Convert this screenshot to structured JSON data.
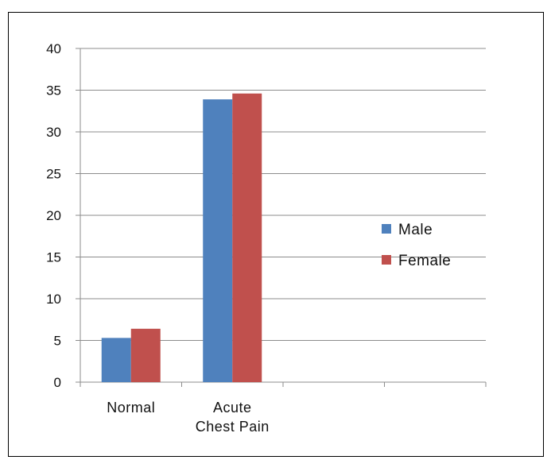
{
  "chart_data": {
    "type": "bar",
    "categories": [
      [
        "Normal"
      ],
      [
        "Acute",
        "Chest Pain"
      ],
      [
        ""
      ],
      [
        ""
      ]
    ],
    "series": [
      {
        "name": "Male",
        "values": [
          5.3,
          33.9,
          null,
          null
        ],
        "color": "#4F81BD"
      },
      {
        "name": "Female",
        "values": [
          6.4,
          34.6,
          null,
          null
        ],
        "color": "#C0504D"
      }
    ],
    "ylim": [
      0,
      40
    ],
    "yticks": [
      "0",
      "5",
      "10",
      "15",
      "20",
      "25",
      "30",
      "35",
      "40"
    ],
    "grid": true,
    "legend_position": "right"
  }
}
